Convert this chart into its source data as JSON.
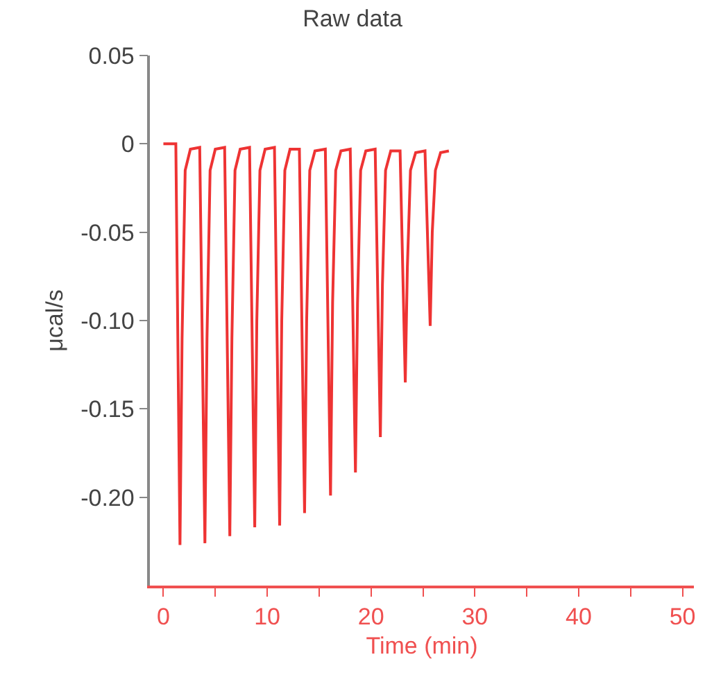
{
  "chart_data": {
    "type": "line",
    "title": "Raw data",
    "xlabel": "Time (min)",
    "ylabel": "μcal/s",
    "xlim": [
      -1.3,
      51.1
    ],
    "ylim": [
      -0.25,
      0.05
    ],
    "xticks": [
      0,
      {
        "value": 5,
        "label": null
      },
      10,
      {
        "value": 15,
        "label": null
      },
      20,
      {
        "value": 25,
        "label": null
      },
      30,
      {
        "value": 35,
        "label": null
      },
      40,
      {
        "value": 45,
        "label": null
      },
      50
    ],
    "yticks": [
      0.05,
      0,
      -0.05,
      {
        "value": -0.1,
        "label": "-0.10"
      },
      -0.15,
      {
        "value": -0.2,
        "label": "-0.20"
      }
    ],
    "marker": "none",
    "line_style": "solid",
    "series": [
      {
        "color": "#ee3333",
        "x": [
          0,
          1.2,
          1.6,
          1.8,
          2.1,
          2.6,
          3.5,
          4.0,
          4.2,
          4.5,
          5.0,
          5.9,
          6.4,
          6.6,
          6.9,
          7.4,
          8.3,
          8.8,
          9.0,
          9.3,
          9.8,
          10.7,
          11.2,
          11.4,
          11.7,
          12.2,
          13.1,
          13.6,
          13.8,
          14.1,
          14.6,
          15.6,
          16.1,
          16.3,
          16.6,
          17.1,
          18.0,
          18.5,
          18.7,
          19.0,
          19.5,
          20.4,
          20.9,
          21.1,
          21.4,
          21.9,
          22.8,
          23.3,
          23.5,
          23.8,
          24.3,
          25.2,
          25.7,
          25.9,
          26.2,
          26.7,
          27.5
        ],
        "values": [
          0,
          0,
          -0.227,
          -0.11,
          -0.015,
          -0.003,
          -0.002,
          -0.226,
          -0.11,
          -0.015,
          -0.003,
          -0.002,
          -0.222,
          -0.11,
          -0.015,
          -0.003,
          -0.002,
          -0.217,
          -0.1,
          -0.015,
          -0.003,
          -0.002,
          -0.216,
          -0.1,
          -0.015,
          -0.003,
          -0.003,
          -0.209,
          -0.1,
          -0.015,
          -0.004,
          -0.003,
          -0.199,
          -0.09,
          -0.015,
          -0.004,
          -0.003,
          -0.186,
          -0.09,
          -0.015,
          -0.004,
          -0.003,
          -0.166,
          -0.08,
          -0.015,
          -0.004,
          -0.004,
          -0.135,
          -0.07,
          -0.015,
          -0.005,
          -0.004,
          -0.103,
          -0.05,
          -0.015,
          -0.005,
          -0.004
        ]
      }
    ]
  }
}
